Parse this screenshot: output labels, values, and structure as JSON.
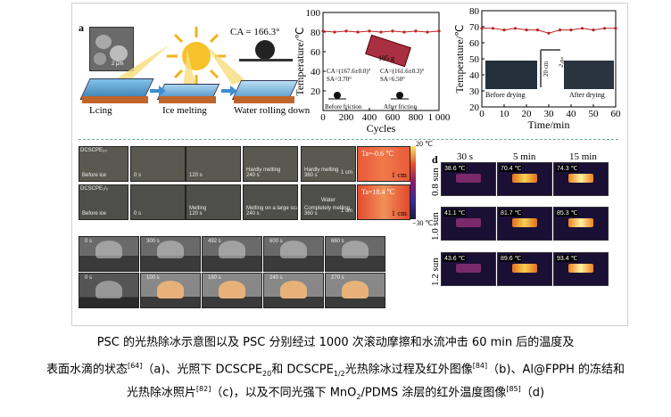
{
  "panel_labels": {
    "a": "a",
    "b": "b",
    "c": "c",
    "d": "d"
  },
  "schematic": {
    "ca_label": "CA = 166.3°",
    "micro_scale": "2 μm",
    "steps": [
      "Lcing",
      "Ice melting",
      "Water rolling down"
    ]
  },
  "friction_chart": {
    "ylabel": "Temperature/℃",
    "xlabel": "Cycles",
    "weight": "105 g",
    "before": "CA=(167.6±0.0)°\nSA=3.70°",
    "after": "CA=(161.6±0.3)°\nSA=6.50°",
    "before_label": "Before friction",
    "after_label": "After friction"
  },
  "drying_chart": {
    "ylabel": "Temperature/℃",
    "xlabel": "Time/min",
    "height_label": "20 cm",
    "angle_label": "2.0°",
    "before_label": "Before drying",
    "after_label": "After drying"
  },
  "chart_data": [
    {
      "type": "line",
      "xlabel": "Cycles",
      "ylabel": "Temperature/℃",
      "x": [
        0,
        100,
        200,
        300,
        400,
        500,
        600,
        700,
        800,
        900,
        1000
      ],
      "series": [
        {
          "values": [
            81,
            80,
            81,
            80,
            81,
            80,
            81,
            80,
            81,
            80,
            81
          ]
        }
      ],
      "xticks": [
        "0",
        "200",
        "400",
        "600",
        "800",
        "1 000"
      ],
      "yticks": [
        "20",
        "40",
        "60",
        "80",
        "100"
      ],
      "ylim": [
        0,
        100
      ],
      "xlim": [
        0,
        1000
      ]
    },
    {
      "type": "line",
      "xlabel": "Time/min",
      "ylabel": "Temperature/℃",
      "x": [
        0,
        5,
        10,
        15,
        20,
        25,
        30,
        35,
        40,
        45,
        50,
        55,
        60
      ],
      "series": [
        {
          "values": [
            69,
            69,
            68,
            69,
            68,
            68,
            66,
            68,
            68,
            69,
            68,
            69,
            69
          ]
        }
      ],
      "xticks": [
        "0",
        "10",
        "20",
        "30",
        "40",
        "50",
        "60"
      ],
      "yticks": [
        "20",
        "30",
        "40",
        "50",
        "60",
        "70",
        "80"
      ],
      "ylim": [
        20,
        80
      ],
      "xlim": [
        0,
        60
      ]
    }
  ],
  "panel_b": {
    "row1": [
      "Before ice",
      "0 s",
      "120 s",
      "Hardly melting\n240 s",
      "Hardly melting\n360 s"
    ],
    "row2": [
      "Before ice",
      "0 s",
      "Melting\n120 s",
      "Melting on a large scale\n240 s",
      "Completely melting\n360 s"
    ],
    "ta1": "Ta=-0.6 ℃",
    "ta2": "Ta=18.4 ℃",
    "scale": "1 cm",
    "water": "Water",
    "cb_top": "20 ℃",
    "cb_bottom": "−30 ℃",
    "tag1": "DCSCPE₂₀",
    "tag2": "DCSCPE₁/₂"
  },
  "panel_c": {
    "row1": [
      "0 s",
      "300 s",
      "492 s",
      "600 s",
      "660 s"
    ],
    "row2": [
      "0 s",
      "100 s",
      "180 s",
      "240 s",
      "270 s"
    ]
  },
  "panel_d": {
    "cols": [
      "30 s",
      "5 min",
      "15 min"
    ],
    "rows": [
      "0.8 sun",
      "1.0 sun",
      "1.2 sun"
    ],
    "temps": [
      [
        "38.6 ℃",
        "70.4 ℃",
        "74.3 ℃"
      ],
      [
        "41.1 ℃",
        "81.7 ℃",
        "85.3 ℃"
      ],
      [
        "43.6 ℃",
        "89.6 ℃",
        "93.4 ℃"
      ]
    ]
  },
  "caption": {
    "line1": "PSC 的光热除冰示意图以及 PSC 分别经过 1000 次滚动摩擦和水流冲击 60  min 后的温度及",
    "line2_a": "表面水滴的状态",
    "ref1": "[64]",
    "line2_b": "（a)、光照下 DCSCPE",
    "sub1": "20",
    "line2_c": "和 DCSCPE",
    "sub2": "1/2",
    "line2_d": "光热除冰过程及红外图像",
    "ref2": "[84]",
    "line2_e": "（b)、Al@FPPH 的冻结和",
    "line3_a": "光热除冰照片",
    "ref3": "[82]",
    "line3_b": "（c)，以及不同光强下 MnO",
    "sub3": "2",
    "line3_c": "/PDMS 涂层的红外温度图像",
    "ref4": "[85]",
    "line3_d": "（d)"
  }
}
